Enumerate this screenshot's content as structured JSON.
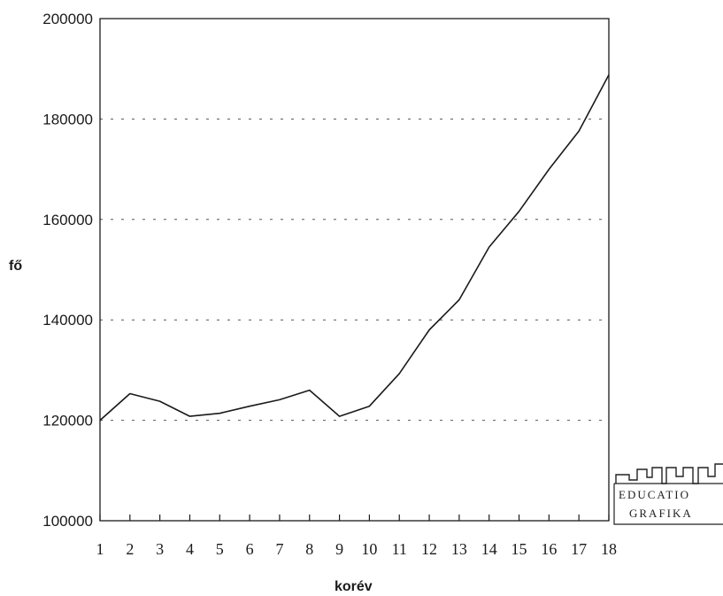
{
  "chart_data": {
    "type": "line",
    "title": "",
    "xlabel": "korév",
    "ylabel": "fő",
    "categories": [
      "1",
      "2",
      "3",
      "4",
      "5",
      "6",
      "7",
      "8",
      "9",
      "10",
      "11",
      "12",
      "13",
      "14",
      "15",
      "16",
      "17",
      "18"
    ],
    "values": [
      120000,
      125300,
      123800,
      120800,
      121400,
      122800,
      124100,
      126000,
      120800,
      122800,
      129300,
      138000,
      144000,
      154500,
      161600,
      170000,
      177600,
      188800
    ],
    "ylim": [
      100000,
      200000
    ],
    "yticks": [
      "100000",
      "120000",
      "140000",
      "160000",
      "180000",
      "200000"
    ],
    "grid": "horizontal dashed",
    "line_color": "#1a1a1a"
  },
  "logo": {
    "line1": "EDUCATIO",
    "line2": "GRAFIKA"
  }
}
